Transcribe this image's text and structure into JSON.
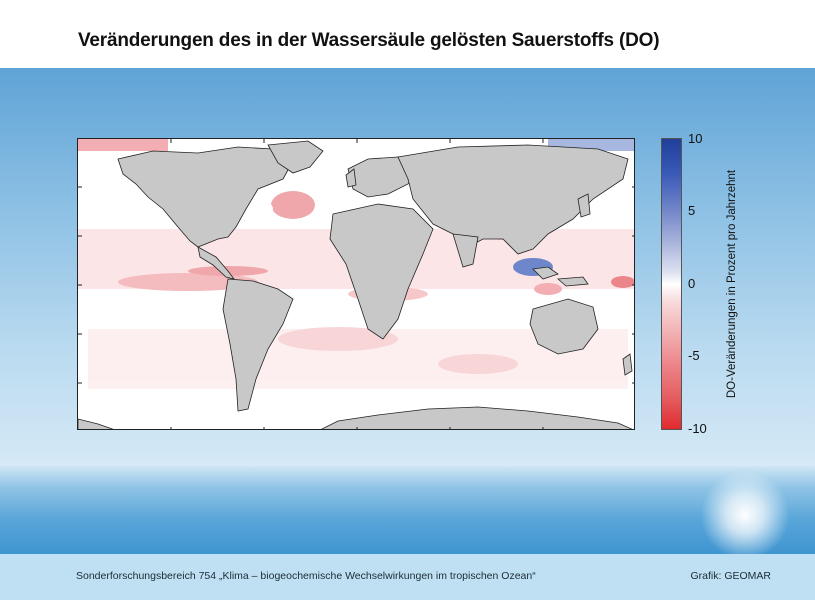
{
  "title": "Veränderungen des in der Wassersäule gelösten Sauerstoffs (DO)",
  "colorbar": {
    "label": "DO-Veränderungen in Prozent pro Jahrzehnt",
    "ticks": [
      "10",
      "5",
      "0",
      "-5",
      "-10"
    ],
    "colors": {
      "max": "#1f3f99",
      "zero": "#ffffff",
      "min": "#e02a2e"
    }
  },
  "footer": {
    "left": "Sonderforschungsbereich 754  „Klima – biogeochemische Wechselwirkungen im tropischen Ozean“",
    "right": "Grafik: GEOMAR"
  },
  "map": {
    "land_color": "#c8c8c8",
    "ocean_color": "#ffffff"
  }
}
